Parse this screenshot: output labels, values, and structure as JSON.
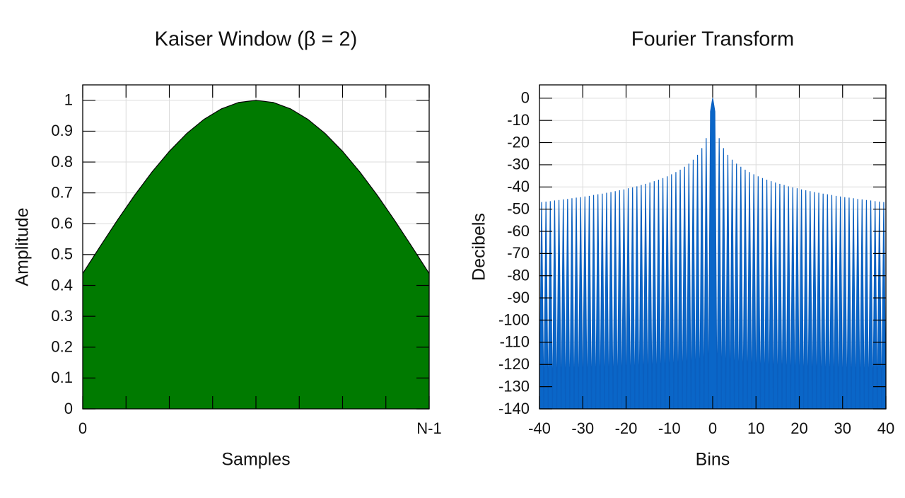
{
  "chart_data": [
    {
      "type": "area",
      "title": "Kaiser Window (β = 2)",
      "x_label": "Samples",
      "y_label": "Amplitude",
      "x": [
        0,
        0.05,
        0.1,
        0.15,
        0.2,
        0.25,
        0.3,
        0.35,
        0.4,
        0.45,
        0.5,
        0.55,
        0.6,
        0.65,
        0.7,
        0.75,
        0.8,
        0.85,
        0.9,
        0.95,
        1
      ],
      "values": [
        0.4387,
        0.5261,
        0.6114,
        0.6926,
        0.7677,
        0.8347,
        0.8922,
        0.9384,
        0.9723,
        0.993,
        1,
        0.993,
        0.9723,
        0.9384,
        0.8922,
        0.8347,
        0.7677,
        0.6926,
        0.6114,
        0.5261,
        0.4387
      ],
      "color": "#007a00",
      "line_color": "#000000",
      "xlim": [
        0,
        1
      ],
      "ylim": [
        0,
        1.05
      ],
      "xticks": [
        0,
        {
          "value": 0.125,
          "label": null
        },
        {
          "value": 0.25,
          "label": null
        },
        {
          "value": 0.375,
          "label": null
        },
        {
          "value": 0.5,
          "label": null
        },
        {
          "value": 0.625,
          "label": null
        },
        {
          "value": 0.75,
          "label": null
        },
        {
          "value": 0.875,
          "label": null
        },
        {
          "value": 1,
          "label": "N-1"
        }
      ],
      "yticks": [
        0,
        0.1,
        0.2,
        0.3,
        0.4,
        0.5,
        0.6,
        0.7,
        0.8,
        0.9,
        1
      ],
      "grid": true
    },
    {
      "type": "area",
      "title": "Fourier Transform",
      "x_label": "Bins",
      "y_label": "Decibels",
      "x": [
        -40,
        -39.5,
        -39,
        -38.5,
        -38,
        -37.5,
        -37,
        -36.5,
        -36,
        -35.5,
        -35,
        -34.5,
        -34,
        -33.5,
        -33,
        -32.5,
        -32,
        -31.5,
        -31,
        -30.5,
        -30,
        -29.5,
        -29,
        -28.5,
        -28,
        -27.5,
        -27,
        -26.5,
        -26,
        -25.5,
        -25,
        -24.5,
        -24,
        -23.5,
        -23,
        -22.5,
        -22,
        -21.5,
        -21,
        -20.5,
        -20,
        -19.5,
        -19,
        -18.5,
        -18,
        -17.5,
        -17,
        -16.5,
        -16,
        -15.5,
        -15,
        -14.5,
        -14,
        -13.5,
        -13,
        -12.5,
        -12,
        -11.5,
        -11,
        -10.5,
        -10,
        -9.5,
        -9,
        -8.5,
        -8,
        -7.5,
        -7,
        -6.5,
        -6,
        -5.5,
        -5,
        -4.5,
        -4,
        -3.5,
        -3,
        -2.5,
        -2,
        -1.5,
        -1,
        -0.5,
        0,
        0.5,
        1,
        1.5,
        2,
        2.5,
        3,
        3.5,
        4,
        4.5,
        5,
        5.5,
        6,
        6.5,
        7,
        7.5,
        8,
        8.5,
        9,
        9.5,
        10,
        10.5,
        11,
        11.5,
        12,
        12.5,
        13,
        13.5,
        14,
        14.5,
        15,
        15.5,
        16,
        16.5,
        17,
        17.5,
        18,
        18.5,
        19,
        19.5,
        20,
        20.5,
        21,
        21.5,
        22,
        22.5,
        23,
        23.5,
        24,
        24.5,
        25,
        25.5,
        26,
        26.5,
        27,
        27.5,
        28,
        28.5,
        29,
        29.5,
        30,
        30.5,
        31,
        31.5,
        32,
        32.5,
        33,
        33.5,
        34,
        34.5,
        35,
        35.5,
        36,
        36.5,
        37,
        37.5,
        38,
        38.5,
        39,
        39.5,
        40
      ],
      "values": [
        -140,
        -46.8,
        -140,
        -46.6,
        -140,
        -46.4,
        -140,
        -46.1,
        -140,
        -45.9,
        -140,
        -45.6,
        -140,
        -45.4,
        -140,
        -45.1,
        -140,
        -44.8,
        -140,
        -44.6,
        -140,
        -44.3,
        -140,
        -44,
        -140,
        -43.6,
        -140,
        -43.3,
        -140,
        -43,
        -140,
        -42.6,
        -140,
        -42.3,
        -140,
        -41.9,
        -140,
        -41.5,
        -140,
        -41.1,
        -140,
        -40.6,
        -140,
        -40.2,
        -140,
        -39.7,
        -140,
        -39.1,
        -140,
        -38.6,
        -140,
        -38,
        -140,
        -37.4,
        -140,
        -36.7,
        -140,
        -36,
        -140,
        -35.2,
        -140,
        -34.3,
        -140,
        -33.3,
        -140,
        -32.2,
        -140,
        -30.9,
        -140,
        -29.5,
        -140,
        -27.7,
        -140,
        -25.5,
        -140,
        -22.5,
        -140,
        -18,
        -140,
        -6,
        0,
        -6,
        -140,
        -18,
        -140,
        -22.5,
        -140,
        -25.5,
        -140,
        -27.7,
        -140,
        -29.5,
        -140,
        -30.9,
        -140,
        -32.2,
        -140,
        -33.3,
        -140,
        -34.3,
        -140,
        -35.2,
        -140,
        -36,
        -140,
        -36.7,
        -140,
        -37.4,
        -140,
        -38,
        -140,
        -38.6,
        -140,
        -39.1,
        -140,
        -39.7,
        -140,
        -40.2,
        -140,
        -40.6,
        -140,
        -41.1,
        -140,
        -41.5,
        -140,
        -41.9,
        -140,
        -42.3,
        -140,
        -42.6,
        -140,
        -43,
        -140,
        -43.3,
        -140,
        -43.6,
        -140,
        -44,
        -140,
        -44.3,
        -140,
        -44.6,
        -140,
        -44.8,
        -140,
        -45.1,
        -140,
        -45.4,
        -140,
        -45.6,
        -140,
        -45.9,
        -140,
        -46.1,
        -140,
        -46.4,
        -140,
        -46.6,
        -140,
        -46.8,
        -140
      ],
      "color": "#0a66c8",
      "line_color": "#0a5fbf",
      "xlim": [
        -40,
        40
      ],
      "ylim": [
        -140,
        6
      ],
      "xticks": [
        -40,
        -30,
        -20,
        -10,
        0,
        10,
        20,
        30,
        40
      ],
      "yticks": [
        -140,
        -130,
        -120,
        -110,
        -100,
        -90,
        -80,
        -70,
        -60,
        -50,
        -40,
        -30,
        -20,
        -10,
        0
      ],
      "grid": true
    }
  ]
}
